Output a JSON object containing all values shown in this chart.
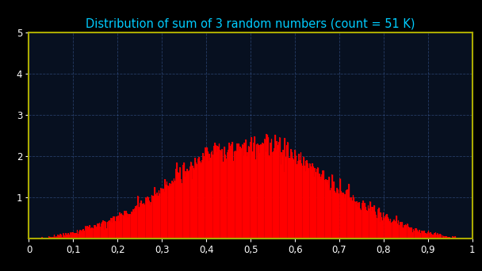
{
  "title": "Distribution of sum of 3 random numbers (count = 51 K)",
  "title_color": "#00ccff",
  "title_fontsize": 10.5,
  "bg_color": "#000000",
  "plot_bg_color": "#071020",
  "border_color": "#aaaa00",
  "grid_color": "#4466aa",
  "bar_color": "#ff0000",
  "tick_color": "#ffffff",
  "xlim": [
    0,
    1
  ],
  "ylim": [
    0,
    5
  ],
  "xticks": [
    0,
    0.1,
    0.2,
    0.3,
    0.4,
    0.5,
    0.6,
    0.7,
    0.8,
    0.9,
    1.0
  ],
  "yticks": [
    1,
    2,
    3,
    4,
    5
  ],
  "n_samples": 51000,
  "n_uniform": 3,
  "n_bins": 500,
  "seed": 42
}
